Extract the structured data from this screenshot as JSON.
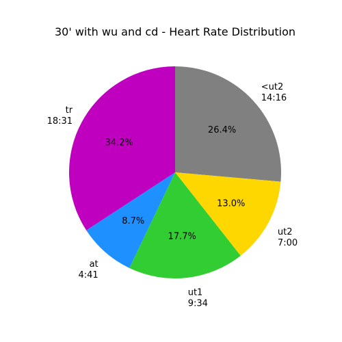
{
  "chart_data": {
    "type": "pie",
    "title": "30' with wu and cd - Heart Rate Distribution",
    "slices": [
      {
        "name": "<ut2",
        "duration": "14:16",
        "value": 26.4,
        "pct_label": "26.4%",
        "color": "#808080"
      },
      {
        "name": "ut2",
        "duration": "7:00",
        "value": 13.0,
        "pct_label": "13.0%",
        "color": "#ffd700"
      },
      {
        "name": "ut1",
        "duration": "9:34",
        "value": 17.7,
        "pct_label": "17.7%",
        "color": "#32cd32"
      },
      {
        "name": "at",
        "duration": "4:41",
        "value": 8.7,
        "pct_label": "8.7%",
        "color": "#1e90ff"
      },
      {
        "name": "tr",
        "duration": "18:31",
        "value": 34.2,
        "pct_label": "34.2%",
        "color": "#bf00bf"
      }
    ],
    "start_angle_deg": 90,
    "direction": "clockwise",
    "legend": "none"
  }
}
